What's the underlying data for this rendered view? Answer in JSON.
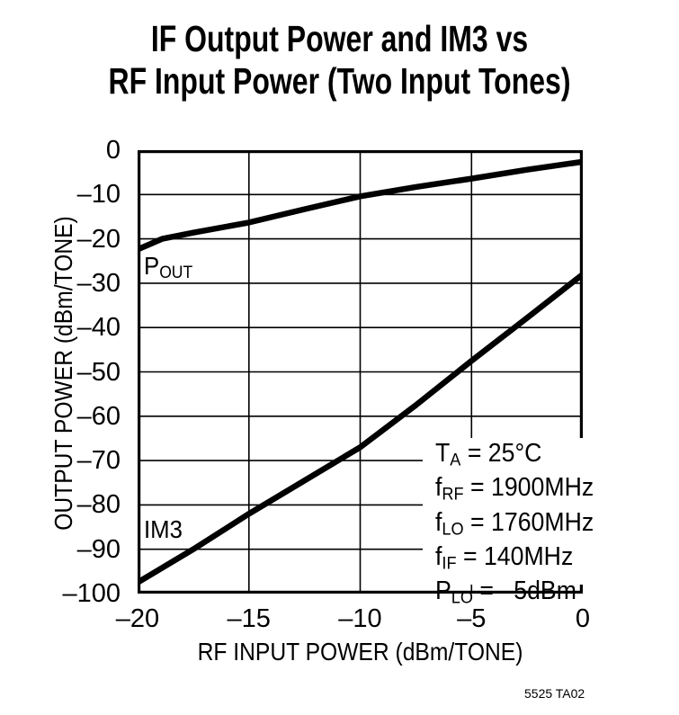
{
  "title": {
    "line1": "IF Output Power and IM3 vs",
    "line2": "RF Input Power (Two Input Tones)"
  },
  "footer": {
    "part_code": "5525 TA02"
  },
  "colors": {
    "ink": "#000000",
    "background": "#ffffff"
  },
  "chart_data": {
    "type": "line",
    "title": "IF Output Power and IM3 vs RF Input Power (Two Input Tones)",
    "xlabel": "RF INPUT POWER (dBm/TONE)",
    "ylabel": "OUTPUT POWER (dBm/TONE)",
    "xlim": [
      -20,
      0
    ],
    "ylim": [
      -100,
      0
    ],
    "grid": true,
    "x_ticks": [
      -20,
      -15,
      -10,
      -5,
      0
    ],
    "x_tick_labels": [
      "–20",
      "–15",
      "–10",
      "–5",
      "0"
    ],
    "y_ticks": [
      0,
      -10,
      -20,
      -30,
      -40,
      -50,
      -60,
      -70,
      -80,
      -90,
      -100
    ],
    "y_tick_labels": [
      "0",
      "–10",
      "–20",
      "–30",
      "–40",
      "–50",
      "–60",
      "–70",
      "–80",
      "–90",
      "–100"
    ],
    "series": [
      {
        "name": "POUT",
        "label": {
          "main": "P",
          "sub": "OUT"
        },
        "x": [
          -20,
          -18.9,
          -17.5,
          -15,
          -12.5,
          -10,
          -7.5,
          -5,
          -2.5,
          0
        ],
        "y": [
          -22.4,
          -20.0,
          -18.6,
          -16.3,
          -13.3,
          -10.4,
          -8.3,
          -6.4,
          -4.4,
          -2.6
        ]
      },
      {
        "name": "IM3",
        "label": {
          "main": "IM3",
          "sub": ""
        },
        "x": [
          -20,
          -17.5,
          -15,
          -12.5,
          -10,
          -7.5,
          -5,
          -2.5,
          0
        ],
        "y": [
          -97.5,
          -90.0,
          -82.0,
          -74.5,
          -67.0,
          -57.5,
          -47.5,
          -37.8,
          -28.0
        ]
      }
    ],
    "annotations": [
      {
        "pre": "T",
        "sub": "A",
        "post": " = 25°C"
      },
      {
        "pre": "f",
        "sub": "RF",
        "post": " = 1900MHz"
      },
      {
        "pre": "f",
        "sub": "LO",
        "post": " = 1760MHz"
      },
      {
        "pre": "f",
        "sub": "IF",
        "post": " = 140MHz"
      },
      {
        "pre": "P",
        "sub": "LO",
        "post": " = –5dBm"
      }
    ]
  }
}
